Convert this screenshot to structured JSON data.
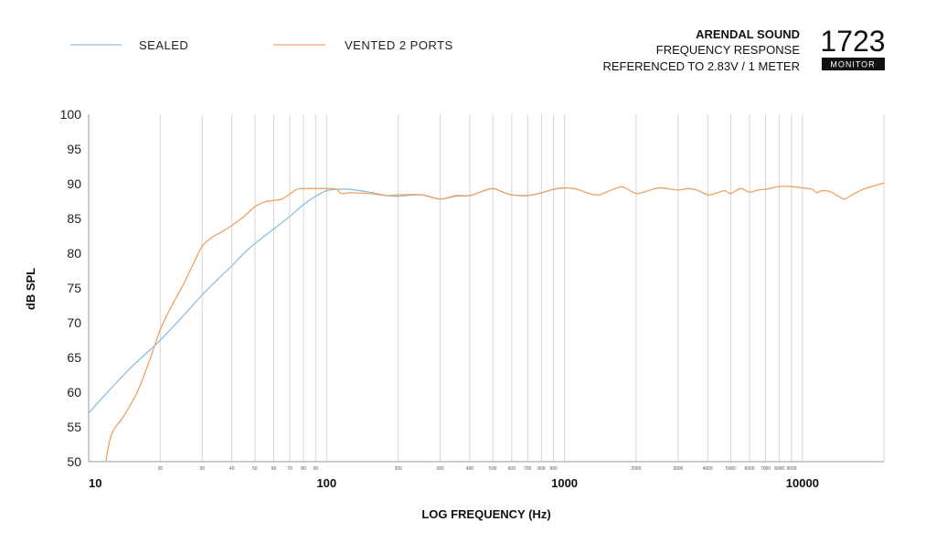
{
  "brand": {
    "name": "ARENDAL SOUND",
    "line1": "FREQUENCY RESPONSE",
    "line2": "REFERENCED TO 2.83V / 1 METER",
    "model": "1723",
    "badge": "MONITOR"
  },
  "chart_data": {
    "type": "line",
    "xscale": "log",
    "xlabel": "LOG FREQUENCY (Hz)",
    "ylabel": "dB SPL",
    "xlim": [
      10,
      22000
    ],
    "ylim": [
      50,
      100
    ],
    "yticks": [
      50,
      55,
      60,
      65,
      70,
      75,
      80,
      85,
      90,
      95,
      100
    ],
    "x_major_ticks": [
      {
        "value": 10,
        "label": "10"
      },
      {
        "value": 100,
        "label": "100"
      },
      {
        "value": 1000,
        "label": "1000"
      },
      {
        "value": 10000,
        "label": "10000"
      }
    ],
    "x_minor_ticks": [
      {
        "value": 20,
        "label": "20"
      },
      {
        "value": 30,
        "label": "30"
      },
      {
        "value": 40,
        "label": "40"
      },
      {
        "value": 50,
        "label": "50"
      },
      {
        "value": 60,
        "label": "60"
      },
      {
        "value": 70,
        "label": "70"
      },
      {
        "value": 80,
        "label": "80"
      },
      {
        "value": 90,
        "label": "90"
      },
      {
        "value": 200,
        "label": "200"
      },
      {
        "value": 300,
        "label": "300"
      },
      {
        "value": 400,
        "label": "400"
      },
      {
        "value": 500,
        "label": "500"
      },
      {
        "value": 600,
        "label": "600"
      },
      {
        "value": 700,
        "label": "700"
      },
      {
        "value": 800,
        "label": "800"
      },
      {
        "value": 900,
        "label": "900"
      },
      {
        "value": 2000,
        "label": "2000"
      },
      {
        "value": 3000,
        "label": "3000"
      },
      {
        "value": 4000,
        "label": "4000"
      },
      {
        "value": 5000,
        "label": "5000"
      },
      {
        "value": 6000,
        "label": "6000"
      },
      {
        "value": 7000,
        "label": "7000"
      },
      {
        "value": 8000,
        "label": "8000"
      },
      {
        "value": 9000,
        "label": "9000"
      }
    ],
    "grid": {
      "vertical": true,
      "horizontal": false
    },
    "legend_position": "top-left",
    "series": [
      {
        "name": "SEALED",
        "color": "#8fbfe0",
        "points": [
          [
            10,
            57
          ],
          [
            12,
            60
          ],
          [
            15,
            63.5
          ],
          [
            18,
            66
          ],
          [
            20,
            67.5
          ],
          [
            25,
            71
          ],
          [
            30,
            74
          ],
          [
            35,
            76.3
          ],
          [
            40,
            78.2
          ],
          [
            45,
            80
          ],
          [
            50,
            81.4
          ],
          [
            60,
            83.5
          ],
          [
            70,
            85.3
          ],
          [
            80,
            87
          ],
          [
            90,
            88.2
          ],
          [
            100,
            89
          ],
          [
            110,
            89.2
          ],
          [
            125,
            89.2
          ],
          [
            150,
            88.8
          ],
          [
            180,
            88.3
          ],
          [
            200,
            88.2
          ],
          [
            250,
            88.4
          ],
          [
            300,
            87.8
          ],
          [
            350,
            88.2
          ],
          [
            400,
            88.3
          ],
          [
            450,
            88.9
          ],
          [
            500,
            89.3
          ],
          [
            550,
            88.8
          ],
          [
            600,
            88.4
          ],
          [
            700,
            88.3
          ],
          [
            800,
            88.7
          ],
          [
            900,
            89.2
          ],
          [
            1000,
            89.4
          ]
        ]
      },
      {
        "name": "VENTED 2 PORTS",
        "color": "#f0a264",
        "points": [
          [
            11.8,
            50
          ],
          [
            12.5,
            54
          ],
          [
            14,
            56.5
          ],
          [
            16,
            60
          ],
          [
            18,
            64.5
          ],
          [
            20,
            69
          ],
          [
            22,
            72
          ],
          [
            25,
            75.5
          ],
          [
            28,
            79
          ],
          [
            30,
            81
          ],
          [
            33,
            82.3
          ],
          [
            36,
            83
          ],
          [
            40,
            84
          ],
          [
            45,
            85.3
          ],
          [
            50,
            86.7
          ],
          [
            55,
            87.4
          ],
          [
            60,
            87.6
          ],
          [
            65,
            87.8
          ],
          [
            70,
            88.5
          ],
          [
            75,
            89.2
          ],
          [
            80,
            89.3
          ],
          [
            90,
            89.3
          ],
          [
            100,
            89.3
          ],
          [
            110,
            89.2
          ],
          [
            115,
            88.6
          ],
          [
            125,
            88.7
          ],
          [
            150,
            88.6
          ],
          [
            180,
            88.3
          ],
          [
            200,
            88.4
          ],
          [
            250,
            88.4
          ],
          [
            300,
            87.8
          ],
          [
            350,
            88.3
          ],
          [
            400,
            88.3
          ],
          [
            450,
            88.9
          ],
          [
            500,
            89.3
          ],
          [
            550,
            88.8
          ],
          [
            600,
            88.4
          ],
          [
            700,
            88.3
          ],
          [
            800,
            88.7
          ],
          [
            900,
            89.2
          ],
          [
            1000,
            89.4
          ],
          [
            1100,
            89.3
          ],
          [
            1200,
            88.9
          ],
          [
            1300,
            88.5
          ],
          [
            1400,
            88.4
          ],
          [
            1500,
            88.8
          ],
          [
            1700,
            89.5
          ],
          [
            1800,
            89.4
          ],
          [
            2000,
            88.6
          ],
          [
            2200,
            88.9
          ],
          [
            2500,
            89.4
          ],
          [
            3000,
            89.1
          ],
          [
            3300,
            89.3
          ],
          [
            3600,
            89.1
          ],
          [
            4000,
            88.4
          ],
          [
            4300,
            88.6
          ],
          [
            4700,
            89.0
          ],
          [
            5000,
            88.6
          ],
          [
            5500,
            89.3
          ],
          [
            6000,
            88.8
          ],
          [
            6500,
            89.1
          ],
          [
            7000,
            89.2
          ],
          [
            8000,
            89.6
          ],
          [
            9000,
            89.6
          ],
          [
            10000,
            89.4
          ],
          [
            11000,
            89.2
          ],
          [
            11500,
            88.7
          ],
          [
            12000,
            89.0
          ],
          [
            13000,
            88.9
          ],
          [
            14000,
            88.3
          ],
          [
            15000,
            87.8
          ],
          [
            16000,
            88.3
          ],
          [
            17000,
            88.8
          ],
          [
            18000,
            89.2
          ],
          [
            20000,
            89.7
          ],
          [
            22000,
            90.1
          ]
        ]
      }
    ]
  }
}
